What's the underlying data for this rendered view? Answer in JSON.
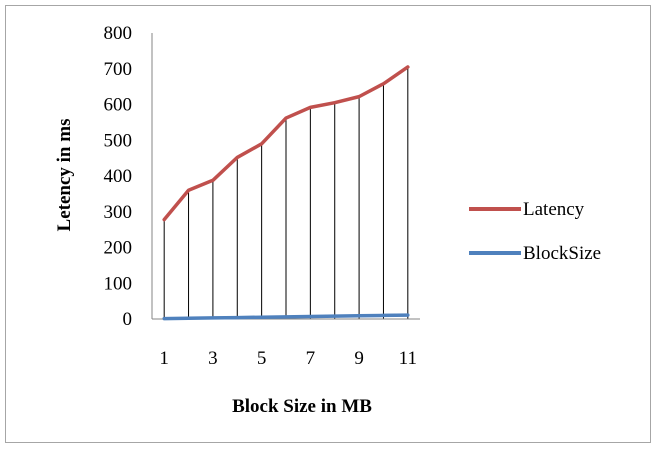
{
  "chart_data": {
    "type": "line",
    "title": "",
    "xlabel": "Block Size in MB",
    "ylabel": "Letency in ms",
    "x": [
      1,
      2,
      3,
      4,
      5,
      6,
      7,
      8,
      9,
      10,
      11
    ],
    "x_tick_labels": [
      "1",
      "3",
      "5",
      "7",
      "9",
      "11"
    ],
    "y_tick_labels": [
      "0",
      "100",
      "200",
      "300",
      "400",
      "500",
      "600",
      "700",
      "800"
    ],
    "ylim": [
      0,
      800
    ],
    "grid": false,
    "drop_lines": true,
    "legend_position": "right",
    "series": [
      {
        "name": "Latency",
        "color": "#c0504d",
        "values": [
          278,
          360,
          388,
          452,
          490,
          562,
          592,
          605,
          622,
          658,
          705
        ]
      },
      {
        "name": "BlockSize",
        "color": "#4f81bd",
        "values": [
          1,
          2,
          3,
          4,
          5,
          6,
          7,
          8,
          9,
          10,
          11
        ]
      }
    ]
  }
}
